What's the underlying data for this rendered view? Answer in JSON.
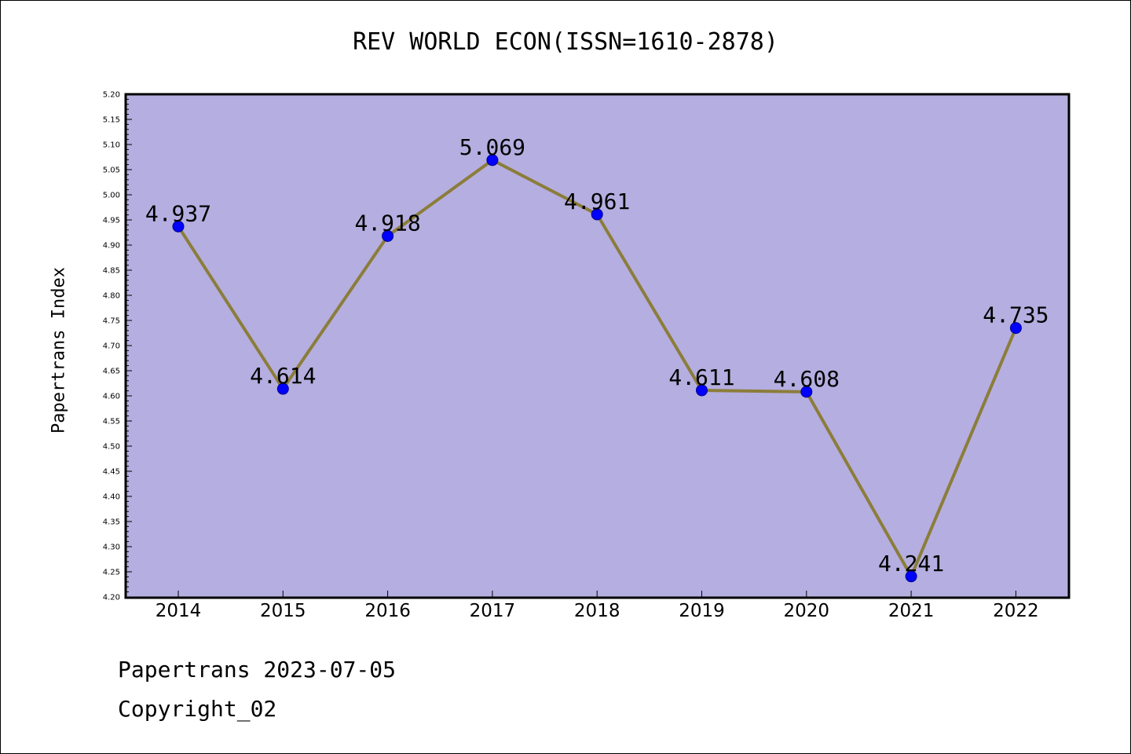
{
  "chart_data": {
    "type": "line",
    "title": "REV WORLD ECON(ISSN=1610-2878)",
    "ylabel": "Papertrans Index",
    "xlabel": "",
    "categories": [
      "2014",
      "2015",
      "2016",
      "2017",
      "2018",
      "2019",
      "2020",
      "2021",
      "2022"
    ],
    "values": [
      4.937,
      4.614,
      4.918,
      5.069,
      4.961,
      4.611,
      4.608,
      4.241,
      4.735
    ],
    "value_labels": [
      "4.937",
      "4.614",
      "4.918",
      "5.069",
      "4.961",
      "4.611",
      "4.608",
      "4.241",
      "4.735"
    ],
    "ylim": [
      4.2,
      5.2
    ],
    "yticks": [
      "4.20",
      "4.25",
      "4.30",
      "4.35",
      "4.40",
      "4.45",
      "4.50",
      "4.55",
      "4.60",
      "4.65",
      "4.70",
      "4.75",
      "4.80",
      "4.85",
      "4.90",
      "4.95",
      "5.00",
      "5.05",
      "5.10",
      "5.15",
      "5.20"
    ],
    "grid": false,
    "colors": {
      "plot_background": "#b5aee0",
      "line": "#8b7d3a",
      "marker": "#0000ff",
      "marker_edge": "#00008b"
    }
  },
  "footer": {
    "date_text": "Papertrans 2023-07-05",
    "copyright_text": "Copyright_02"
  }
}
